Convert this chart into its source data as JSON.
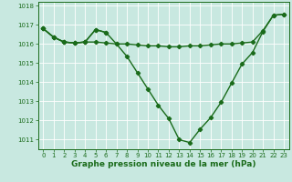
{
  "line_flat": {
    "x": [
      0,
      1,
      2,
      3,
      4,
      5,
      6,
      7,
      8,
      9,
      10,
      11,
      12,
      13,
      14,
      15,
      16,
      17,
      18,
      19,
      20,
      21,
      22,
      23
    ],
    "y": [
      1016.8,
      1016.35,
      1016.1,
      1016.05,
      1016.1,
      1016.1,
      1016.05,
      1016.0,
      1016.0,
      1015.95,
      1015.9,
      1015.9,
      1015.85,
      1015.85,
      1015.9,
      1015.9,
      1015.95,
      1016.0,
      1016.0,
      1016.05,
      1016.1,
      1016.7,
      1017.5,
      1017.55
    ]
  },
  "line_deep": {
    "x": [
      0,
      1,
      2,
      3,
      4,
      5,
      6,
      7,
      8,
      9,
      10,
      11,
      12,
      13,
      14,
      15,
      16,
      17,
      18,
      19,
      20,
      21,
      22,
      23
    ],
    "y": [
      1016.8,
      1016.35,
      1016.1,
      1016.05,
      1016.1,
      1016.75,
      1016.6,
      1016.0,
      1015.35,
      1014.5,
      1013.65,
      1012.8,
      1012.1,
      1011.0,
      1010.85,
      1011.55,
      1012.15,
      1012.95,
      1013.95,
      1014.95,
      1015.55,
      1016.65,
      1017.5,
      1017.55
    ]
  },
  "line_top": {
    "x": [
      0,
      1,
      2,
      3,
      4,
      5,
      6
    ],
    "y": [
      1016.8,
      1016.35,
      1016.1,
      1016.05,
      1016.1,
      1016.75,
      1016.6
    ]
  },
  "color": "#1a6b1a",
  "marker": "D",
  "markersize": 2.2,
  "linewidth": 1.0,
  "bg_color": "#c8e8e0",
  "grid_color": "#ffffff",
  "ylim": [
    1010.5,
    1018.2
  ],
  "xlim": [
    -0.5,
    23.5
  ],
  "yticks": [
    1011,
    1012,
    1013,
    1014,
    1015,
    1016,
    1017,
    1018
  ],
  "xticks": [
    0,
    1,
    2,
    3,
    4,
    5,
    6,
    7,
    8,
    9,
    10,
    11,
    12,
    13,
    14,
    15,
    16,
    17,
    18,
    19,
    20,
    21,
    22,
    23
  ],
  "xlabel": "Graphe pression niveau de la mer (hPa)",
  "xlabel_fontsize": 6.5,
  "tick_fontsize": 5.0,
  "label_color": "#1a6b1a"
}
